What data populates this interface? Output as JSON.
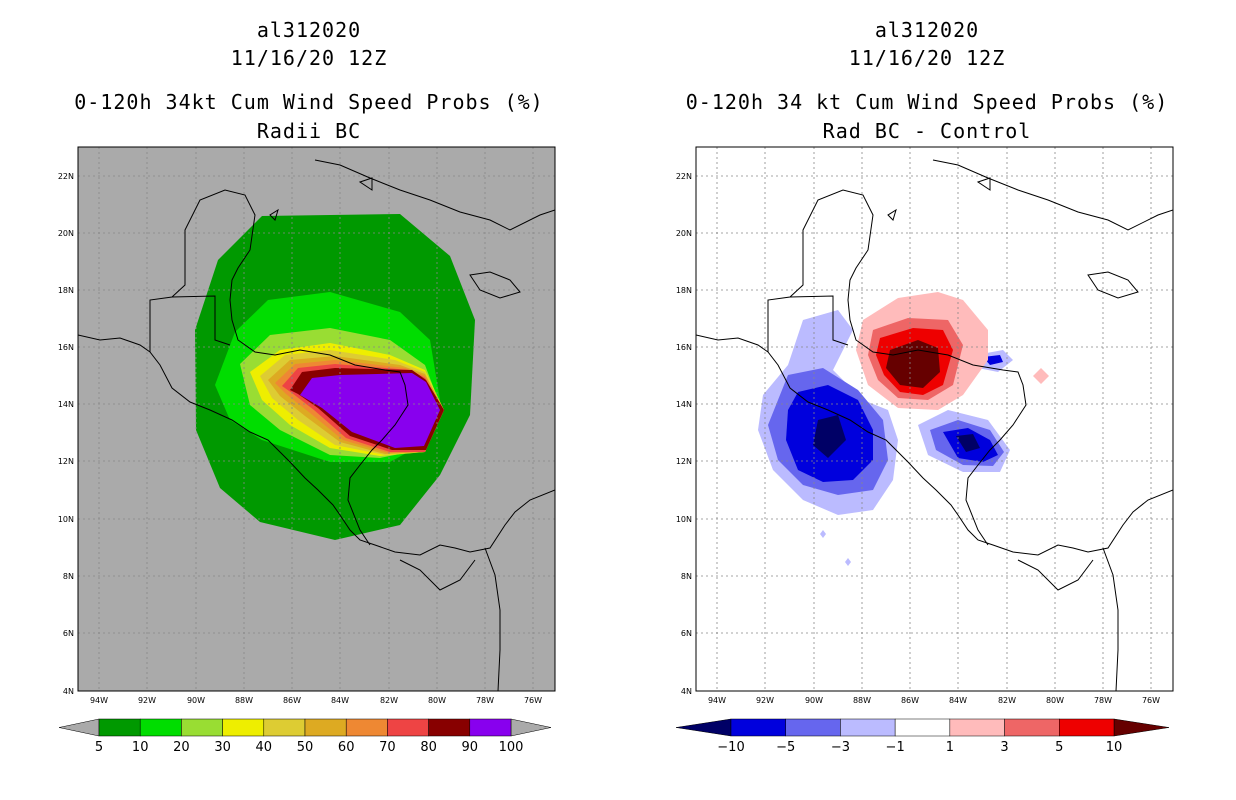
{
  "left": {
    "storm": "al312020",
    "date": "11/16/20 12Z",
    "title": "0-120h 34kt Cum Wind Speed Probs (%)",
    "subtitle": "Radii BC",
    "colorbar": {
      "labels": [
        "5",
        "10",
        "20",
        "30",
        "40",
        "50",
        "60",
        "70",
        "80",
        "90",
        "100"
      ],
      "colors": [
        "#009900",
        "#00dd00",
        "#99dd33",
        "#eeee00",
        "#ddcc33",
        "#ddaa22",
        "#ee8833",
        "#ee4444",
        "#880000",
        "#8800ee"
      ]
    }
  },
  "right": {
    "storm": "al312020",
    "date": "11/16/20 12Z",
    "title": "0-120h 34 kt Cum Wind Speed Probs (%)",
    "subtitle": "Rad BC - Control",
    "colorbar": {
      "labels": [
        "-10",
        "-5",
        "-3",
        "-1",
        "1",
        "3",
        "5",
        "10"
      ],
      "colors": [
        "#0000dd",
        "#6666ee",
        "#bbbbff",
        "#ffffff",
        "#ffbbbb",
        "#ee6666",
        "#ee0000"
      ],
      "end_low": "#000066",
      "end_high": "#660000"
    }
  },
  "axes": {
    "lat_labels": [
      "22N",
      "20N",
      "18N",
      "16N",
      "14N",
      "12N",
      "10N",
      "8N",
      "6N",
      "4N"
    ],
    "lon_labels": [
      "94W",
      "92W",
      "90W",
      "88W",
      "86W",
      "84W",
      "82W",
      "80W",
      "78W",
      "76W"
    ]
  },
  "colors": {
    "left_background": "#aaaaaa",
    "right_background": "#ffffff"
  }
}
